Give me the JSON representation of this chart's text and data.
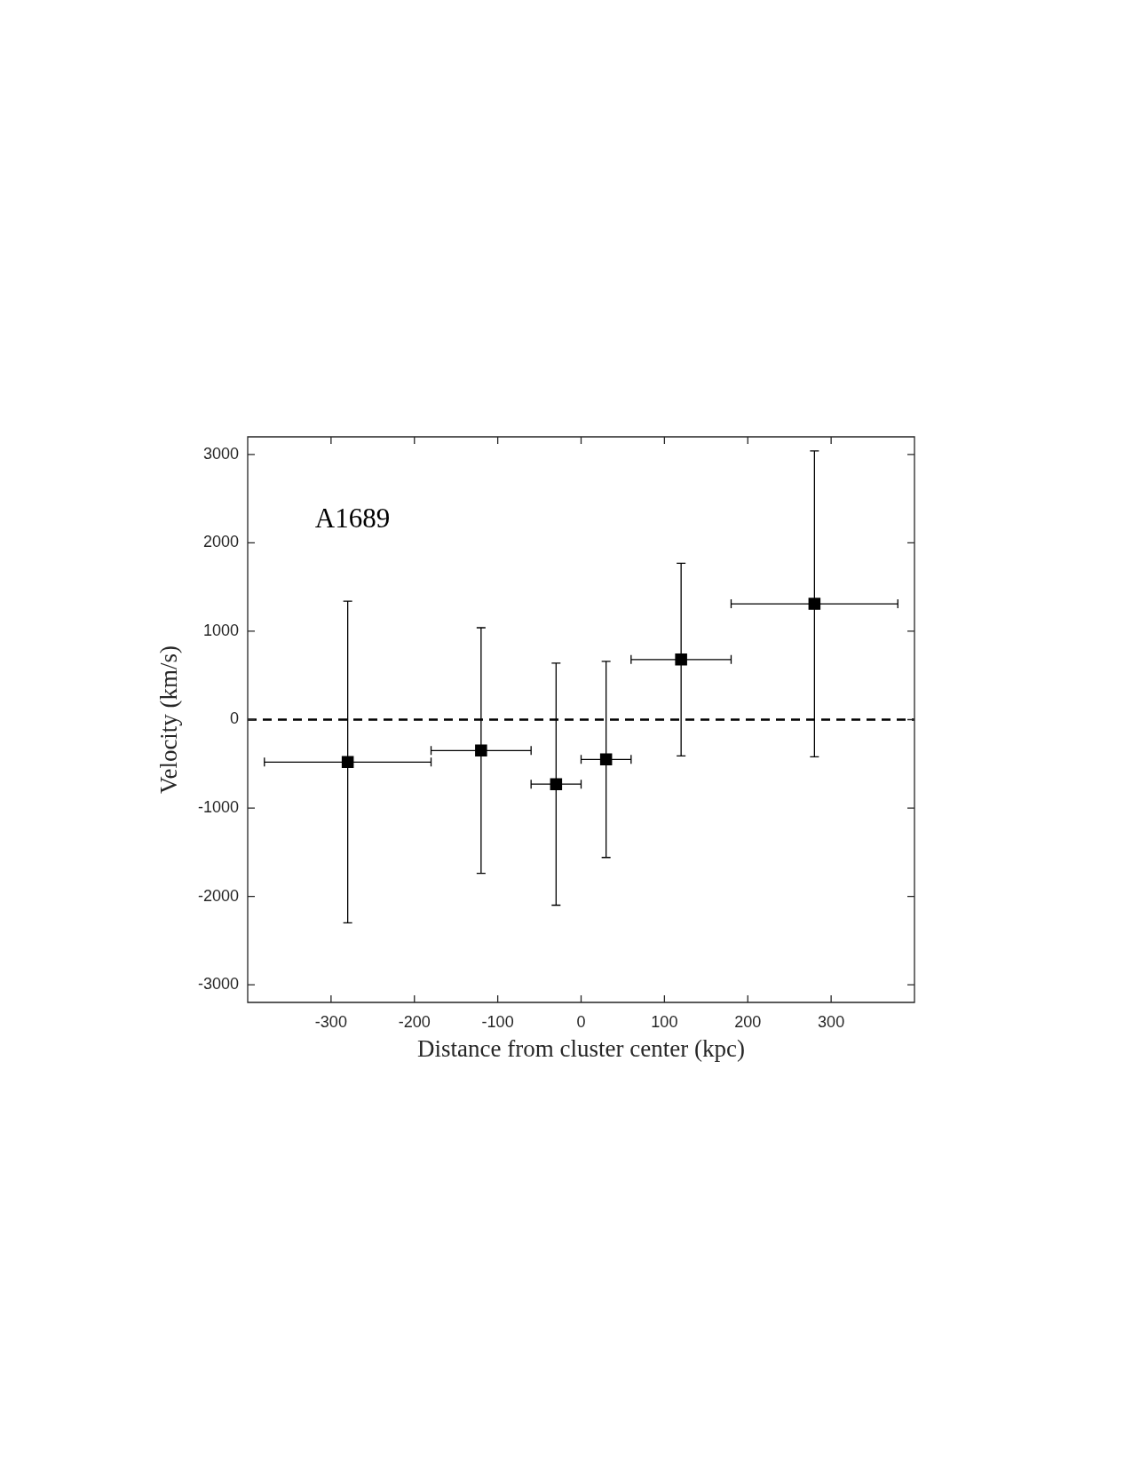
{
  "chart_data": {
    "type": "scatter",
    "x": [
      -280,
      -120,
      -30,
      30,
      120,
      280
    ],
    "values": [
      -480,
      -350,
      -730,
      -450,
      680,
      1310
    ],
    "errors": [
      1820,
      1390,
      1370,
      1110,
      1090,
      1730
    ],
    "xerrors": [
      100,
      60,
      30,
      30,
      60,
      100
    ],
    "color": "#000000",
    "marker": "square",
    "xlabel": "Distance from cluster center (kpc)",
    "ylabel": "Velocity (km/s)",
    "xlim": [
      -400,
      400
    ],
    "ylim": [
      -3200,
      3200
    ],
    "xticks": [
      -300,
      -200,
      -100,
      0,
      100,
      200,
      300
    ],
    "yticks": [
      -3000,
      -2000,
      -1000,
      0,
      1000,
      2000,
      3000
    ],
    "annotations": [
      "A1689"
    ],
    "ref_lines": [
      {
        "axis": "y",
        "value": 0,
        "color": "#000000",
        "line_style": "dashed"
      }
    ]
  }
}
